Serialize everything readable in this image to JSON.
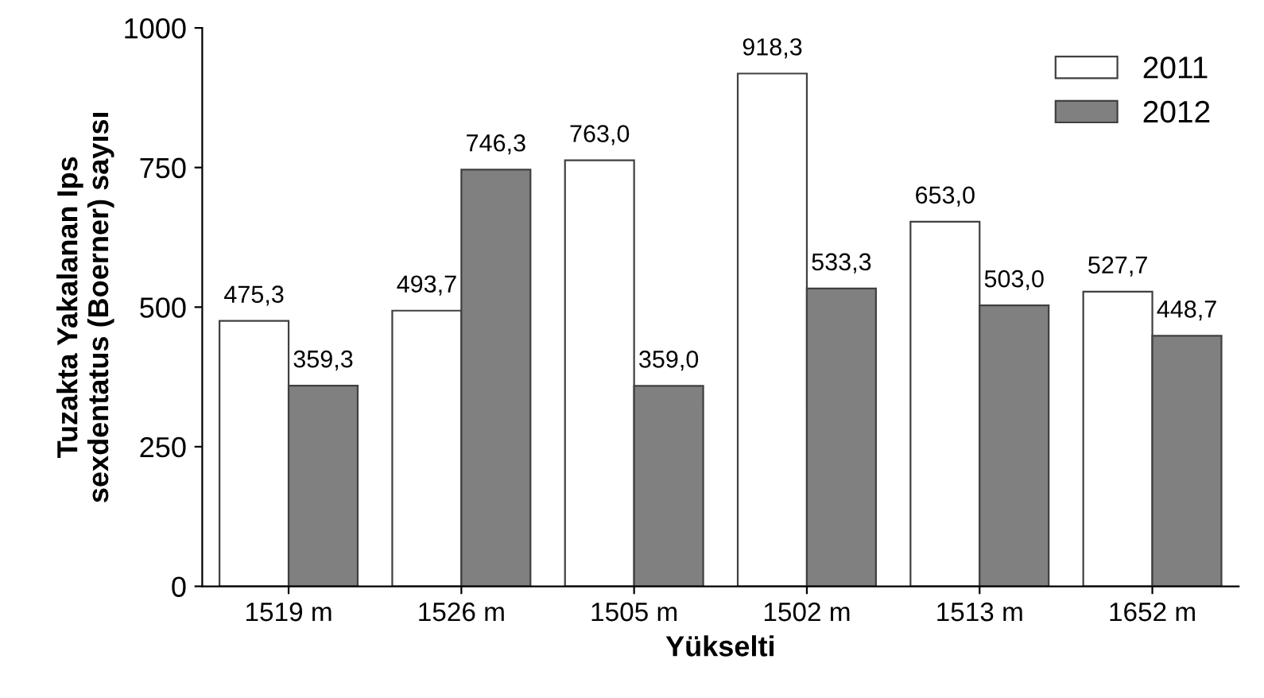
{
  "chart_data": {
    "type": "bar",
    "xlabel": "Yükselti",
    "ylabel": "Tuzakta Yakalanan Ips\nsexdentatus (Boerner) sayısı",
    "categories": [
      "1519 m",
      "1526 m",
      "1505 m",
      "1502 m",
      "1513 m",
      "1652 m"
    ],
    "series": [
      {
        "name": "2011",
        "color": "#ffffff",
        "values": [
          475.3,
          493.7,
          763.0,
          918.3,
          653.0,
          527.7
        ],
        "value_labels": [
          "475,3",
          "493,7",
          "763,0",
          "918,3",
          "653,0",
          "527,7"
        ]
      },
      {
        "name": "2012",
        "color": "#808080",
        "values": [
          359.3,
          746.3,
          359.0,
          533.3,
          503.0,
          448.7
        ],
        "value_labels": [
          "359,3",
          "746,3",
          "359,0",
          "533,3",
          "503,0",
          "448,7"
        ]
      }
    ],
    "ylim": [
      0,
      1000
    ],
    "yticks": [
      0,
      250,
      500,
      750,
      1000
    ],
    "grid": false,
    "legend": "top right"
  }
}
